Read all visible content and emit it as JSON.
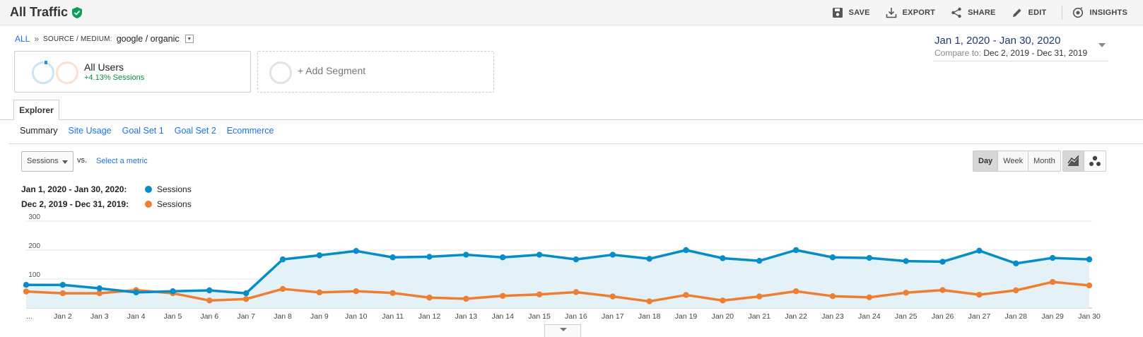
{
  "header": {
    "title": "All Traffic",
    "actions": {
      "save": "SAVE",
      "export": "EXPORT",
      "share": "SHARE",
      "edit": "EDIT",
      "insights": "INSIGHTS"
    }
  },
  "breadcrumb": {
    "all": "ALL",
    "separator": "»",
    "dimension": "SOURCE / MEDIUM:",
    "value": "google / organic"
  },
  "date_range": {
    "primary": "Jan 1, 2020 - Jan 30, 2020",
    "compare_label": "Compare to:",
    "compare": "Dec 2, 2019 - Dec 31, 2019"
  },
  "segments": {
    "active": {
      "name": "All Users",
      "detail": "+4.13% Sessions"
    },
    "add": "+ Add Segment"
  },
  "tabs": {
    "explorer": "Explorer"
  },
  "subnav": [
    "Summary",
    "Site Usage",
    "Goal Set 1",
    "Goal Set 2",
    "Ecommerce"
  ],
  "metric": {
    "selected": "Sessions",
    "vs": "vs.",
    "select_metric": "Select a metric"
  },
  "period": {
    "day": "Day",
    "week": "Week",
    "month": "Month",
    "selected": "Day"
  },
  "legend": [
    {
      "range": "Jan 1, 2020 - Jan 30, 2020:",
      "series": "Sessions",
      "color": "#058dc7"
    },
    {
      "range": "Dec 2, 2019 - Dec 31, 2019:",
      "series": "Sessions",
      "color": "#ed7e32"
    }
  ],
  "colors": {
    "primary": "#058dc7",
    "compare": "#ed7e32",
    "accent_green": "#0a8f3f",
    "link": "#1a73e8"
  },
  "chart_data": {
    "type": "line",
    "x": [
      "...",
      "Jan 2",
      "Jan 3",
      "Jan 4",
      "Jan 5",
      "Jan 6",
      "Jan 7",
      "Jan 8",
      "Jan 9",
      "Jan 10",
      "Jan 11",
      "Jan 12",
      "Jan 13",
      "Jan 14",
      "Jan 15",
      "Jan 16",
      "Jan 17",
      "Jan 18",
      "Jan 19",
      "Jan 20",
      "Jan 21",
      "Jan 22",
      "Jan 23",
      "Jan 24",
      "Jan 25",
      "Jan 26",
      "Jan 27",
      "Jan 28",
      "Jan 29",
      "Jan 30"
    ],
    "ylim": [
      0,
      300
    ],
    "yticks": [
      "100",
      "200",
      "300"
    ],
    "grid": true,
    "series": [
      {
        "name": "Sessions",
        "color": "#058dc7",
        "fill": true,
        "values": [
          80,
          80,
          68,
          54,
          58,
          61,
          51,
          168,
          182,
          197,
          175,
          177,
          184,
          175,
          184,
          168,
          184,
          170,
          200,
          172,
          163,
          200,
          175,
          173,
          162,
          160,
          198,
          154,
          173,
          168
        ]
      },
      {
        "name": "Sessions",
        "color": "#ed7e32",
        "fill": false,
        "values": [
          57,
          51,
          51,
          62,
          51,
          26,
          31,
          66,
          54,
          58,
          52,
          36,
          32,
          42,
          47,
          55,
          40,
          23,
          45,
          26,
          40,
          58,
          41,
          37,
          53,
          62,
          46,
          61,
          90,
          78
        ]
      }
    ]
  }
}
